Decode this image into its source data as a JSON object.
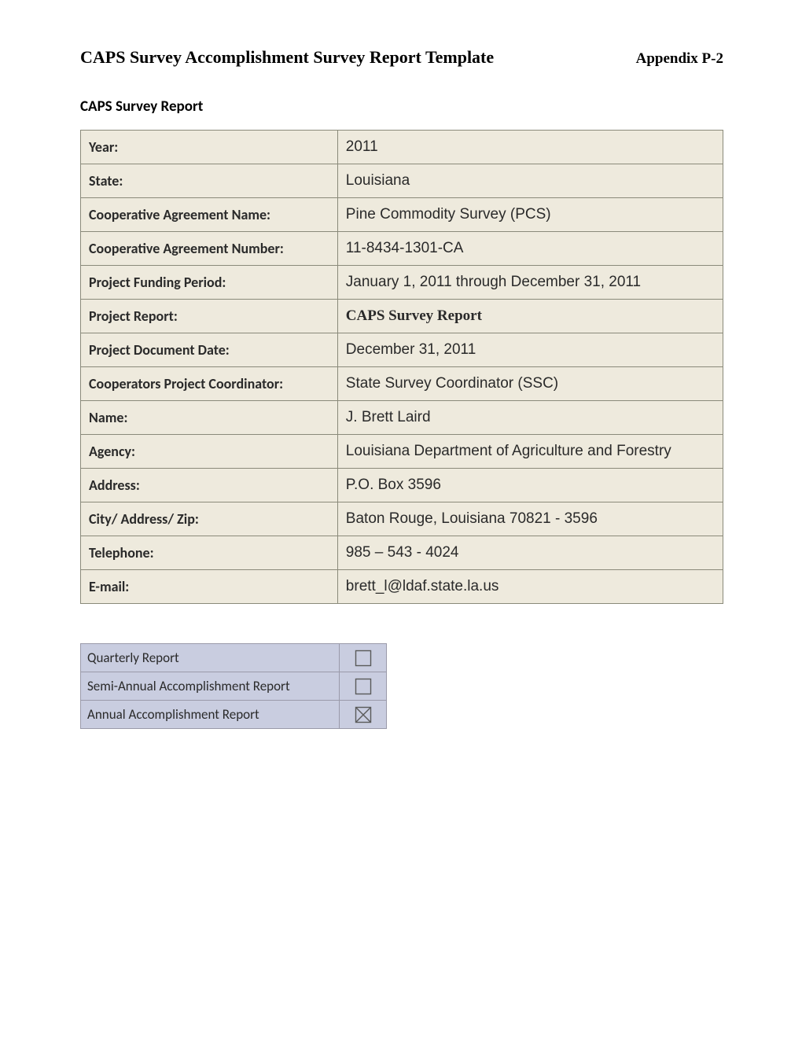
{
  "header": {
    "title": "CAPS Survey Accomplishment Survey Report Template",
    "appendix": "Appendix P-2"
  },
  "section_heading": "CAPS Survey Report",
  "info_table": {
    "rows": [
      {
        "label": "Year:",
        "value": "2011",
        "value_style": "normal"
      },
      {
        "label": "State:",
        "value": "Louisiana",
        "value_style": "normal"
      },
      {
        "label": "Cooperative Agreement Name:",
        "value": "Pine Commodity Survey (PCS)",
        "value_style": "normal"
      },
      {
        "label": "Cooperative Agreement Number:",
        "value": "11-8434-1301-CA",
        "value_style": "normal"
      },
      {
        "label": "Project Funding Period:",
        "value": "January 1, 2011 through December 31, 2011",
        "value_style": "normal"
      },
      {
        "label": "Project Report:",
        "value": "CAPS Survey Report",
        "value_style": "bold-serif"
      },
      {
        "label": "Project Document Date:",
        "value": "December 31, 2011",
        "value_style": "normal"
      },
      {
        "label": "Cooperators Project Coordinator:",
        "value": "State Survey Coordinator (SSC)",
        "value_style": "normal"
      },
      {
        "label": "Name:",
        "value": "J. Brett Laird",
        "value_style": "normal"
      },
      {
        "label": "Agency:",
        "value": "Louisiana Department of Agriculture and Forestry",
        "value_style": "normal"
      },
      {
        "label": "Address:",
        "value": "P.O. Box 3596",
        "value_style": "normal"
      },
      {
        "label": "City/ Address/ Zip:",
        "value": "Baton Rouge, Louisiana 70821 - 3596",
        "value_style": "normal"
      },
      {
        "label": "Telephone:",
        "value": "985 – 543 - 4024",
        "value_style": "normal"
      },
      {
        "label": "E-mail:",
        "value": "brett_l@ldaf.state.la.us",
        "value_style": "normal"
      }
    ],
    "label_bg_color": "#eeeadd",
    "value_bg_color": "#eeeadd",
    "border_color": "#8a8a7a"
  },
  "report_type_table": {
    "rows": [
      {
        "label": "Quarterly Report",
        "checked": false
      },
      {
        "label": "Semi-Annual Accomplishment Report",
        "checked": false
      },
      {
        "label": "Annual Accomplishment Report",
        "checked": true
      }
    ],
    "bg_color": "#c9cde0",
    "border_color": "#9a9aaa",
    "checkbox_stroke": "#5a5a5a",
    "checkbox_size": 22
  }
}
